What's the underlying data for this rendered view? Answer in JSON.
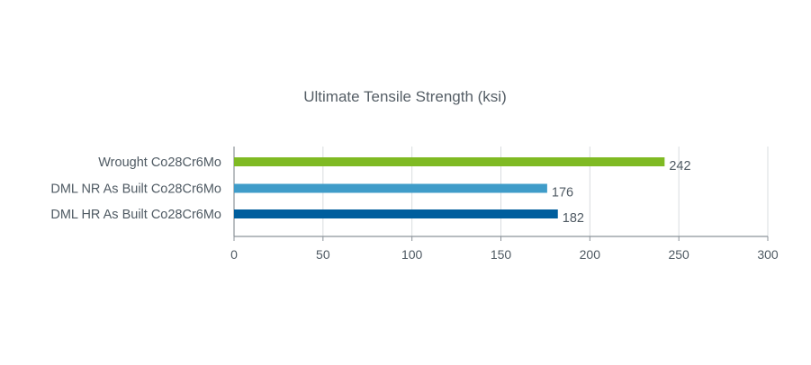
{
  "chart_data": {
    "type": "bar",
    "orientation": "horizontal",
    "title": "Ultimate Tensile Strength (ksi)",
    "xlabel": "",
    "ylabel": "",
    "categories": [
      "Wrought Co28Cr6Mo",
      "DML NR As Built Co28Cr6Mo",
      "DML HR As Built Co28Cr6Mo"
    ],
    "values": [
      242,
      176,
      182
    ],
    "data_labels": [
      "242",
      "176",
      "182"
    ],
    "bar_colors": [
      "#7fba23",
      "#3f9cc9",
      "#005e9d"
    ],
    "xlim": [
      0,
      300
    ],
    "x_ticks": [
      0,
      50,
      100,
      150,
      200,
      250,
      300
    ],
    "x_tick_labels": [
      "0",
      "50",
      "100",
      "150",
      "200",
      "250",
      "300"
    ],
    "grid": "vertical",
    "legend": "none"
  }
}
